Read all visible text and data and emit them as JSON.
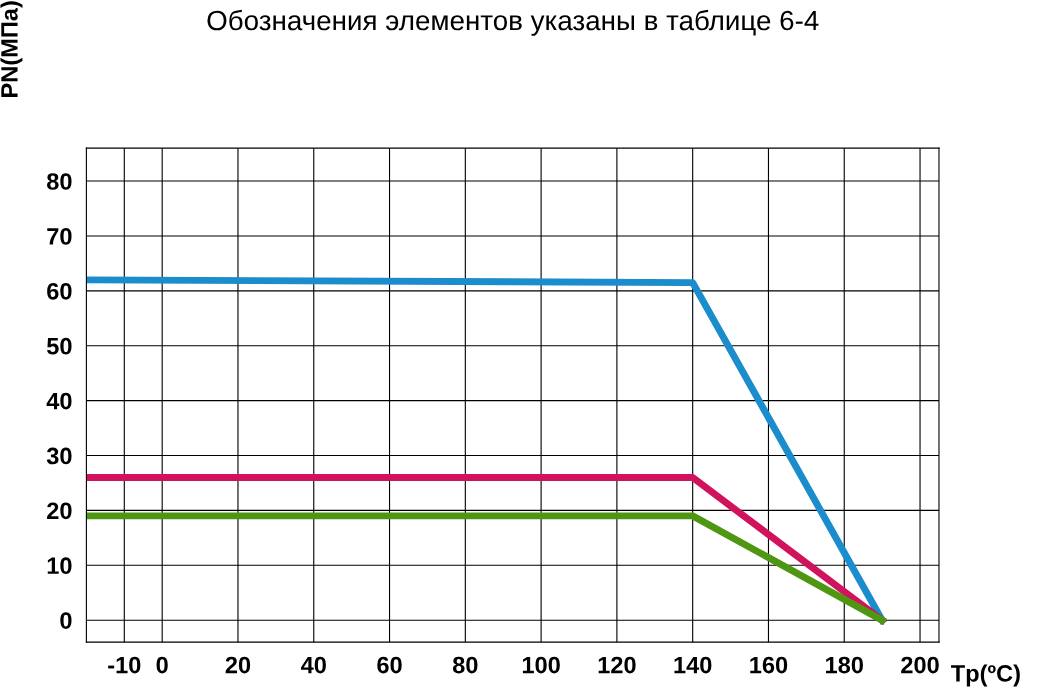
{
  "chart_data": {
    "type": "line",
    "title": "Обозначения элементов указаны в таблице 6-4",
    "xlabel": "Tp(ºC)",
    "ylabel": "PN(МПа)",
    "series": [
      {
        "color": "#1b8ccc",
        "x": [
          -20,
          140,
          190
        ],
        "values": [
          62,
          61.5,
          0
        ]
      },
      {
        "color": "#d1135e",
        "x": [
          -20,
          140,
          190
        ],
        "values": [
          26,
          26,
          0
        ]
      },
      {
        "color": "#4f9612",
        "x": [
          -20,
          140,
          190
        ],
        "values": [
          19,
          19,
          0
        ]
      }
    ],
    "xlim": [
      -20,
      205
    ],
    "xticks": [
      -10,
      0,
      20,
      40,
      60,
      80,
      100,
      120,
      140,
      160,
      180,
      200
    ],
    "ylim": [
      -4,
      86
    ],
    "yticks": [
      0,
      10,
      20,
      30,
      40,
      50,
      60,
      70,
      80
    ],
    "grid": true,
    "line_style": "solid",
    "marker": "none"
  }
}
